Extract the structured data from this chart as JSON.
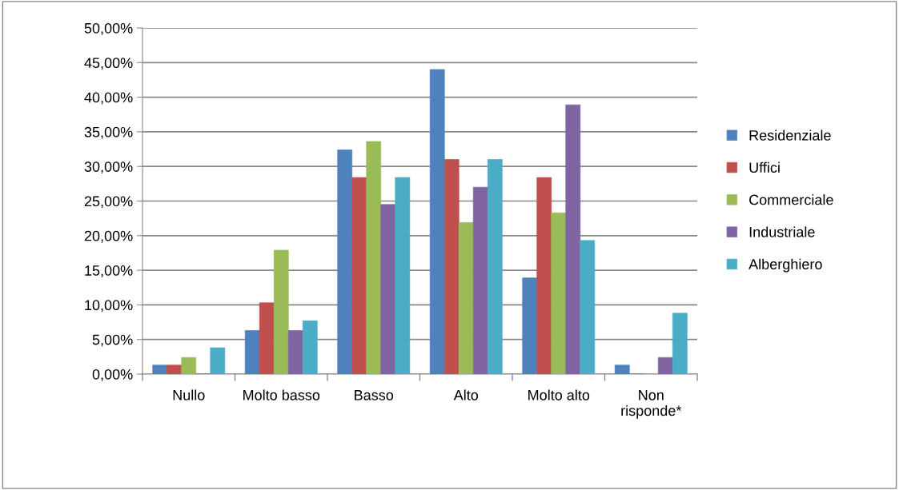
{
  "chart_data": {
    "type": "bar",
    "categories": [
      "Nullo",
      "Molto basso",
      "Basso",
      "Alto",
      "Molto alto",
      "Non\nrisponde*"
    ],
    "series": [
      {
        "name": "Residenziale",
        "color": "#4f81bd",
        "values": [
          1.3,
          6.3,
          32.4,
          44.0,
          13.9,
          1.3
        ]
      },
      {
        "name": "Uffici",
        "color": "#c0504d",
        "values": [
          1.3,
          10.3,
          28.4,
          31.0,
          28.4,
          0
        ]
      },
      {
        "name": "Commerciale",
        "color": "#9bbb59",
        "values": [
          2.4,
          17.9,
          33.6,
          21.9,
          23.3,
          0
        ]
      },
      {
        "name": "Industriale",
        "color": "#8064a2",
        "values": [
          0,
          6.3,
          24.5,
          27.0,
          38.9,
          2.4
        ]
      },
      {
        "name": "Alberghiero",
        "color": "#4bacc6",
        "values": [
          3.8,
          7.7,
          28.4,
          31.0,
          19.3,
          8.8
        ]
      }
    ],
    "ylim": [
      0,
      50
    ],
    "yticks": [
      {
        "value": 0,
        "label": "0,00%"
      },
      {
        "value": 5,
        "label": "5,00%"
      },
      {
        "value": 10,
        "label": "10,00%"
      },
      {
        "value": 15,
        "label": "15,00%"
      },
      {
        "value": 20,
        "label": "20,00%"
      },
      {
        "value": 25,
        "label": "25,00%"
      },
      {
        "value": 30,
        "label": "30,00%"
      },
      {
        "value": 35,
        "label": "35,00%"
      },
      {
        "value": 40,
        "label": "40,00%"
      },
      {
        "value": 45,
        "label": "45,00%"
      },
      {
        "value": 50,
        "label": "50,00%"
      }
    ],
    "grid": "y",
    "legend": "right"
  }
}
